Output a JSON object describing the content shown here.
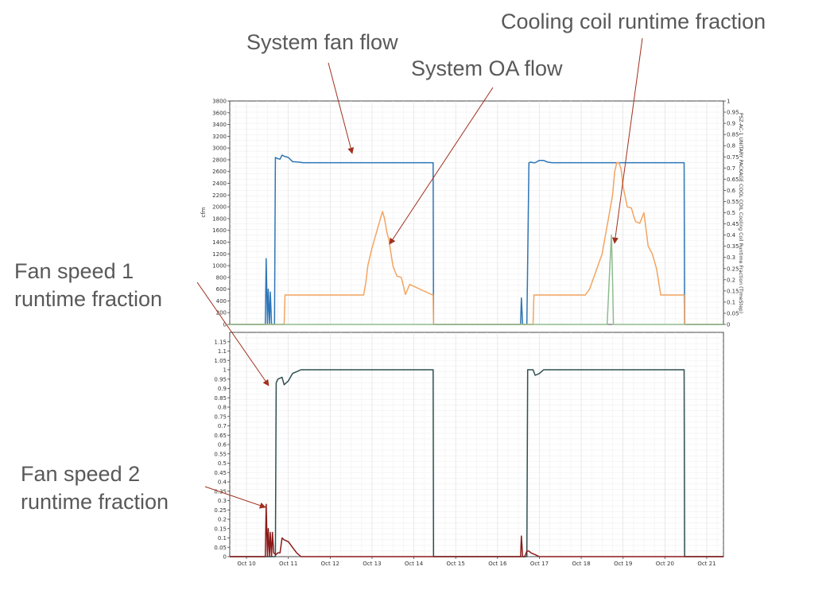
{
  "annotations": {
    "fan_flow": "System fan flow",
    "oa_flow": "System OA flow",
    "cooling_rtf": "Cooling coil runtime fraction",
    "fan_speed1": [
      "Fan speed 1",
      "runtime fraction"
    ],
    "fan_speed2": [
      "Fan speed 2",
      "runtime fraction"
    ]
  },
  "colors": {
    "fan_flow": "#2e75b6",
    "oa_flow": "#f4a460",
    "cooling_rtf": "#8fbc8f",
    "speed1": "#2f4f4f",
    "speed2": "#8b1a1a",
    "arrow": "#a0301e"
  },
  "chart_data": [
    {
      "type": "line",
      "title": "",
      "ylabel": "cfm",
      "y2label": "PSZ-AC-1 UNITARY PACKAGE COOL COIL Cooling Coil Runtime Fraction (TimeStep)",
      "ylim": [
        0,
        3800
      ],
      "y2lim": [
        0,
        1
      ],
      "yticks": [
        "0",
        "200",
        "400",
        "600",
        "800",
        "1000",
        "1200",
        "1400",
        "1600",
        "1800",
        "2000",
        "2200",
        "2400",
        "2600",
        "2800",
        "3000",
        "3200",
        "3400",
        "3600",
        "3800"
      ],
      "y2ticks": [
        "0",
        "0.05",
        "0.1",
        "0.15",
        "0.2",
        "0.25",
        "0.3",
        "0.35",
        "0.4",
        "0.45",
        "0.5",
        "0.55",
        "0.6",
        "0.65",
        "0.7",
        "0.75",
        "0.8",
        "0.85",
        "0.9",
        "0.95",
        "1"
      ],
      "xlim": [
        9.6,
        21.4
      ],
      "grid": true,
      "series": [
        {
          "key": "fan_flow",
          "axis": "left",
          "x": [
            9.6,
            10.45,
            10.47,
            10.5,
            10.52,
            10.55,
            10.57,
            10.6,
            10.62,
            10.65,
            10.67,
            10.69,
            10.71,
            10.75,
            10.8,
            10.85,
            10.9,
            11.0,
            11.1,
            11.25,
            11.35,
            14.45,
            14.46,
            14.47,
            16.5,
            16.55,
            16.57,
            16.6,
            16.62,
            16.65,
            16.67,
            16.7,
            16.75,
            16.8,
            16.85,
            16.9,
            17.0,
            17.1,
            17.2,
            17.3,
            20.45,
            20.46,
            20.47,
            21.4
          ],
          "y": [
            0,
            0,
            1120,
            0,
            600,
            0,
            550,
            0,
            0,
            0,
            0,
            2840,
            2830,
            2820,
            2810,
            2880,
            2860,
            2840,
            2770,
            2760,
            2750,
            2750,
            2750,
            0,
            0,
            0,
            450,
            0,
            0,
            0,
            0,
            0,
            2750,
            2760,
            2750,
            2750,
            2790,
            2790,
            2760,
            2750,
            2750,
            2750,
            0,
            0
          ]
        },
        {
          "key": "oa_flow",
          "axis": "left",
          "x": [
            9.6,
            10.9,
            10.92,
            11.0,
            12.8,
            12.85,
            12.9,
            13.0,
            13.1,
            13.2,
            13.25,
            13.3,
            13.35,
            13.4,
            13.5,
            13.55,
            13.6,
            13.7,
            13.8,
            13.9,
            14.45,
            14.46,
            14.47,
            16.5,
            16.85,
            16.87,
            17.0,
            18.1,
            18.2,
            18.3,
            18.4,
            18.5,
            18.55,
            18.6,
            18.65,
            18.7,
            18.75,
            18.8,
            18.85,
            18.9,
            18.95,
            19.0,
            19.1,
            19.2,
            19.25,
            19.3,
            19.4,
            19.5,
            19.6,
            19.7,
            19.8,
            19.9,
            20.0,
            20.45,
            20.46,
            20.47,
            21.4
          ],
          "y": [
            0,
            0,
            500,
            500,
            500,
            700,
            1000,
            1300,
            1550,
            1800,
            1920,
            1800,
            1580,
            1450,
            1000,
            900,
            820,
            800,
            510,
            680,
            500,
            500,
            0,
            0,
            0,
            500,
            500,
            500,
            600,
            800,
            1000,
            1200,
            1400,
            1600,
            1800,
            2000,
            2200,
            2600,
            2750,
            2750,
            2650,
            2350,
            2000,
            1980,
            1850,
            1750,
            1720,
            1900,
            1330,
            1200,
            950,
            500,
            500,
            500,
            500,
            0,
            0
          ]
        },
        {
          "key": "cooling_rtf",
          "axis": "right",
          "x": [
            9.6,
            18.6,
            18.62,
            18.67,
            18.72,
            18.75,
            18.77,
            21.4
          ],
          "y": [
            0,
            0,
            0,
            0.2,
            0.4,
            0.2,
            0,
            0
          ]
        }
      ]
    },
    {
      "type": "line",
      "title": "",
      "ylim": [
        0,
        1.2
      ],
      "yticks": [
        "0",
        "0.05",
        "0.1",
        "0.15",
        "0.2",
        "0.25",
        "0.3",
        "0.35",
        "0.4",
        "0.45",
        "0.5",
        "0.55",
        "0.6",
        "0.65",
        "0.7",
        "0.75",
        "0.8",
        "0.85",
        "0.9",
        "0.95",
        "1",
        "1.05",
        "1.1",
        "1.15"
      ],
      "xlim": [
        9.6,
        21.4
      ],
      "xticks": [
        10,
        11,
        12,
        13,
        14,
        15,
        16,
        17,
        18,
        19,
        20,
        21
      ],
      "xticklabels": [
        "Oct 10",
        "Oct 11",
        "Oct 12",
        "Oct 13",
        "Oct 14",
        "Oct 15",
        "Oct 16",
        "Oct 17",
        "Oct 18",
        "Oct 19",
        "Oct 20",
        "Oct 21"
      ],
      "grid": true,
      "series": [
        {
          "key": "speed1",
          "x": [
            9.6,
            10.69,
            10.71,
            10.75,
            10.85,
            10.9,
            11.0,
            11.05,
            11.1,
            11.2,
            11.3,
            11.4,
            14.45,
            14.46,
            14.47,
            16.7,
            16.72,
            16.75,
            16.85,
            16.9,
            17.0,
            17.05,
            17.1,
            20.45,
            20.46,
            20.47,
            21.4
          ],
          "y": [
            0,
            0,
            0.93,
            0.95,
            0.96,
            0.92,
            0.94,
            0.96,
            0.98,
            0.99,
            1.0,
            1.0,
            1.0,
            1.0,
            0,
            0,
            1.0,
            1.0,
            1.0,
            0.97,
            0.98,
            0.99,
            1.0,
            1.0,
            1.0,
            0,
            0
          ]
        },
        {
          "key": "speed2",
          "x": [
            9.6,
            10.45,
            10.47,
            10.5,
            10.52,
            10.55,
            10.57,
            10.6,
            10.62,
            10.65,
            10.7,
            10.75,
            10.8,
            10.85,
            10.9,
            11.0,
            11.1,
            11.2,
            11.3,
            11.4,
            14.45,
            16.5,
            16.55,
            16.57,
            16.6,
            16.65,
            16.7,
            16.75,
            16.8,
            16.9,
            17.0,
            17.1,
            17.2,
            20.45,
            21.4
          ],
          "y": [
            0,
            0,
            0.28,
            0,
            0.15,
            0,
            0.13,
            0,
            0.13,
            0.02,
            0.01,
            0.02,
            0.02,
            0.1,
            0.09,
            0.08,
            0.05,
            0.02,
            0,
            0,
            0,
            0,
            0,
            0.11,
            0,
            0,
            0.03,
            0.03,
            0.02,
            0.01,
            0,
            0,
            0,
            0,
            0
          ]
        }
      ]
    }
  ]
}
